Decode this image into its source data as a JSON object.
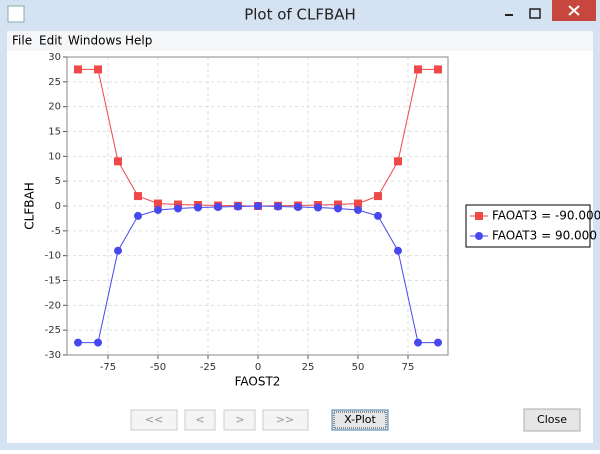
{
  "window": {
    "title": "Plot of CLFBAH"
  },
  "menu": [
    "File",
    "Edit",
    "Windows",
    "Help"
  ],
  "chart_data": {
    "type": "line",
    "x_label": "FAOST2",
    "y_label": "CLFBAH",
    "x": [
      -90,
      -80,
      -70,
      -60,
      -50,
      -40,
      -30,
      -20,
      -10,
      0,
      10,
      20,
      30,
      40,
      50,
      60,
      70,
      80,
      90
    ],
    "series": [
      {
        "name": "FAOAT3 = -90.000",
        "color": "#f04848",
        "marker": "square",
        "values": [
          27.5,
          27.5,
          9,
          2,
          0.5,
          0.3,
          0.2,
          0.1,
          0.05,
          0,
          0.05,
          0.1,
          0.2,
          0.3,
          0.5,
          2,
          9,
          27.5,
          27.5
        ]
      },
      {
        "name": "FAOAT3 = 90.000",
        "color": "#4848f0",
        "marker": "circle",
        "values": [
          -27.5,
          -27.5,
          -9,
          -2,
          -0.8,
          -0.5,
          -0.3,
          -0.2,
          -0.1,
          0,
          -0.1,
          -0.2,
          -0.3,
          -0.5,
          -0.8,
          -2,
          -9,
          -27.5,
          -27.5
        ]
      }
    ],
    "xlim": [
      -95.5,
      95
    ],
    "ylim": [
      -30,
      30
    ],
    "xticks": [
      -75,
      -50,
      -25,
      0,
      25,
      50,
      75
    ],
    "yticks": [
      -30,
      -25,
      -20,
      -15,
      -10,
      -5,
      0,
      5,
      10,
      15,
      20,
      25,
      30
    ],
    "grid": true,
    "legend": "right"
  },
  "buttons": [
    "<<",
    "<",
    ">",
    ">>",
    "X-Plot",
    "Close"
  ]
}
